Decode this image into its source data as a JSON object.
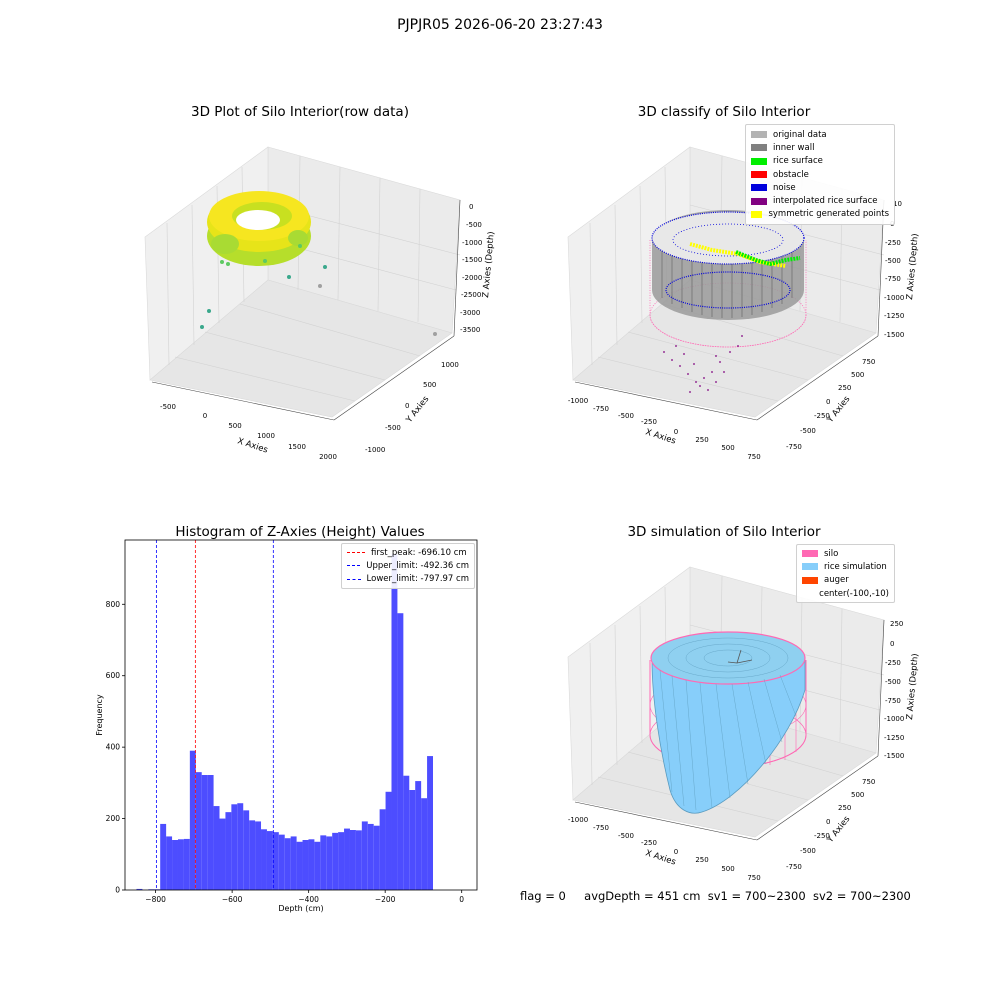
{
  "suptitle": "PJPJR05 2026-06-20 23:27:43",
  "footer": {
    "flag": "flag = 0",
    "avg_depth": "avgDepth = 451 cm",
    "sv1": "sv1 = 700~2300",
    "sv2": "sv2 = 700~2300"
  },
  "colors": {
    "original_data": "#b3b3b3",
    "inner_wall": "#808080",
    "rice_surface": "#00ee00",
    "obstacle": "#ff0000",
    "noise": "#0000dd",
    "interpolated_rice_surface": "#800080",
    "symmetric_generated_points": "#ffff00",
    "silo": "#ff69b4",
    "rice_simulation": "#87cefa",
    "auger": "#ff4500",
    "hist_bar": "#4d4dff"
  },
  "chart_data": [
    {
      "type": "scatter",
      "kind": "3d",
      "title": "3D Plot of Silo Interior(row data)",
      "xlabel": "X Axies",
      "ylabel": "Y Axies",
      "zlabel": "Z Axies (Depth)",
      "x_ticks": [
        "-500",
        "0",
        "500",
        "1000",
        "1500",
        "2000"
      ],
      "y_ticks": [
        "-1000",
        "-500",
        "0",
        "500",
        "1000"
      ],
      "z_ticks": [
        "0",
        "-500",
        "-1000",
        "-1500",
        "-2000",
        "-2500",
        "-3000",
        "-3500"
      ],
      "xlim": [
        -800,
        2100
      ],
      "ylim": [
        -1100,
        1200
      ],
      "zlim": [
        -3700,
        0
      ],
      "note": "ring of points near the top colored yellow to green by depth, a few scattered outliers below"
    },
    {
      "type": "scatter",
      "kind": "3d",
      "title": "3D classify of Silo Interior",
      "xlabel": "X Axies",
      "ylabel": "Y Axies",
      "zlabel": "Z Axies (Depth)",
      "x_ticks": [
        "-1000",
        "-750",
        "-500",
        "-250",
        "0",
        "250",
        "500",
        "750"
      ],
      "y_ticks": [
        "-750",
        "-500",
        "-250",
        "0",
        "250",
        "500",
        "750"
      ],
      "z_ticks": [
        "10",
        "0",
        "-250",
        "-500",
        "-750",
        "-1000",
        "-1250",
        "-1500"
      ],
      "legend_position": "top-right",
      "series": [
        {
          "name": "original data",
          "color_key": "original_data"
        },
        {
          "name": "inner wall",
          "color_key": "inner_wall"
        },
        {
          "name": "rice surface",
          "color_key": "rice_surface"
        },
        {
          "name": "obstacle",
          "color_key": "obstacle"
        },
        {
          "name": "noise",
          "color_key": "noise"
        },
        {
          "name": "interpolated rice surface",
          "color_key": "interpolated_rice_surface"
        },
        {
          "name": "symmetric generated points",
          "color_key": "symmetric_generated_points"
        }
      ]
    },
    {
      "type": "bar",
      "kind": "histogram",
      "title": "Histogram of Z-Axies (Height) Values",
      "xlabel": "Depth (cm)",
      "ylabel": "Frequency",
      "xlim": [
        -880,
        40
      ],
      "ylim": [
        0,
        980
      ],
      "x_ticks": [
        -800,
        -600,
        -400,
        -200,
        0
      ],
      "y_ticks": [
        0,
        200,
        400,
        600,
        800
      ],
      "bin_start": -850,
      "bin_width": 15.5,
      "values": [
        3,
        0,
        2,
        2,
        185,
        150,
        140,
        142,
        143,
        390,
        330,
        322,
        322,
        235,
        200,
        218,
        240,
        243,
        223,
        195,
        192,
        170,
        165,
        162,
        155,
        145,
        150,
        135,
        140,
        142,
        135,
        153,
        150,
        160,
        162,
        172,
        168,
        167,
        192,
        185,
        180,
        226,
        275,
        940,
        775,
        320,
        280,
        305,
        257,
        375
      ],
      "lines": [
        {
          "label": "first_peak: -696.10 cm",
          "value": -696.1,
          "color": "#ff0000"
        },
        {
          "label": "Upper_limit: -492.36 cm",
          "value": -492.36,
          "color": "#0000ff"
        },
        {
          "label": "Lower_limit: -797.97 cm",
          "value": -797.97,
          "color": "#0000ff"
        }
      ],
      "legend_position": "top-right"
    },
    {
      "type": "area",
      "kind": "3d surface",
      "title": "3D simulation of Silo Interior",
      "xlabel": "X Axies",
      "ylabel": "Y Axies",
      "zlabel": "Z Axies (Depth)",
      "x_ticks": [
        "-1000",
        "-750",
        "-500",
        "-250",
        "0",
        "250",
        "500",
        "750"
      ],
      "y_ticks": [
        "-750",
        "-500",
        "-250",
        "0",
        "250",
        "500",
        "750"
      ],
      "z_ticks": [
        "250",
        "0",
        "-250",
        "-500",
        "-750",
        "-1000",
        "-1250",
        "-1500"
      ],
      "legend_position": "top-right",
      "series": [
        {
          "name": "silo",
          "color_key": "silo"
        },
        {
          "name": "rice simulation",
          "color_key": "rice_simulation"
        },
        {
          "name": "auger",
          "color_key": "auger"
        }
      ],
      "legend_extra": "center(-100,-10)"
    }
  ]
}
